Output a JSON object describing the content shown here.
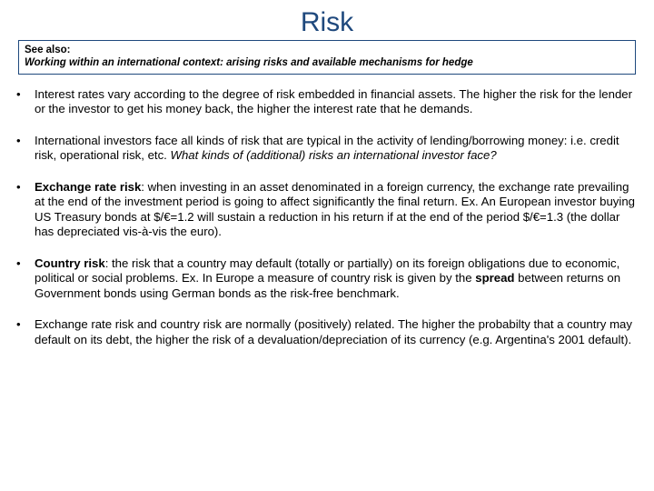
{
  "title": "Risk",
  "see_also": {
    "label": "See also:",
    "text": "Working within an international context: arising risks and available mechanisms for hedge"
  },
  "bullets": [
    {
      "runs": [
        {
          "t": "Interest rates vary according to the degree of risk embedded in financial assets. The higher the risk for the lender or the investor to get his money back, the higher the interest rate that he demands."
        }
      ]
    },
    {
      "runs": [
        {
          "t": "International investors face all kinds of risk that are typical in the activity of lending/borrowing money: i.e. credit risk, operational risk, etc. "
        },
        {
          "t": "What kinds of (additional) risks an international investor face?",
          "italic": true
        }
      ]
    },
    {
      "runs": [
        {
          "t": "Exchange rate risk",
          "bold": true
        },
        {
          "t": ": when investing in an asset denominated in a foreign currency, the exchange rate prevailing at the end of the investment period is going to affect significantly the final return. Ex. An European investor buying US Treasury bonds at $/€=1.2 will sustain a reduction in his return if at the end of the period $/€=1.3 (the dollar has depreciated vis-à-vis the euro)."
        }
      ]
    },
    {
      "runs": [
        {
          "t": "Country risk",
          "bold": true
        },
        {
          "t": ": the risk that a country may default (totally or partially) on its foreign obligations due to economic, political or social problems. Ex. In Europe a measure of country risk is given by the "
        },
        {
          "t": "spread",
          "bold": true
        },
        {
          "t": " between returns on Government bonds using German bonds as the risk-free benchmark."
        }
      ]
    },
    {
      "runs": [
        {
          "t": "Exchange rate risk and country risk are normally (positively) related. The higher the probabilty that a country may default on its debt, the higher the risk of a devaluation/depreciation of its currency (e.g. Argentina's 2001 default)."
        }
      ]
    }
  ],
  "colors": {
    "title": "#1f497d",
    "box_border": "#1f497d",
    "text": "#000000",
    "background": "#ffffff"
  },
  "typography": {
    "title_fontsize": 30,
    "body_fontsize": 13.2,
    "seealso_fontsize": 11.5,
    "font_family": "Arial"
  }
}
